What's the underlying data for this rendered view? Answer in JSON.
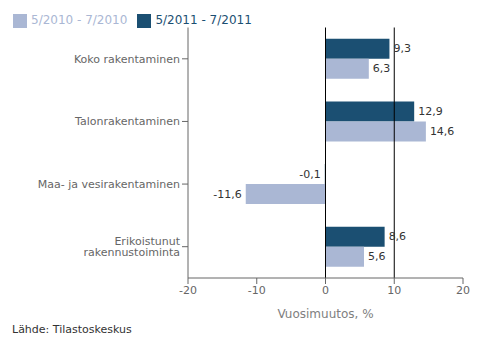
{
  "chart_data": {
    "type": "bar",
    "orientation": "horizontal",
    "categories": [
      "Erikoistunut rakennustoiminta",
      "Maa- ja vesirakentaminen",
      "Talonrakentaminen",
      "Koko rakentaminen"
    ],
    "series": [
      {
        "name": "5/2011 - 7/2011",
        "color": "#1b4f72",
        "values": [
          8.6,
          -0.1,
          12.9,
          9.3
        ],
        "value_labels": [
          "8,6",
          "-0,1",
          "12,9",
          "9,3"
        ]
      },
      {
        "name": "5/2010 - 7/2010",
        "color": "#aab7d4",
        "values": [
          5.6,
          -11.6,
          14.6,
          6.3
        ],
        "value_labels": [
          "5,6",
          "-11,6",
          "14,6",
          "6,3"
        ]
      }
    ],
    "xlabel": "Vuosimuutos, %",
    "xlim": [
      -20,
      20
    ],
    "xticks": [
      -20,
      -10,
      0,
      10,
      20
    ],
    "vlines": [
      0,
      10
    ],
    "data_labels": true,
    "legend": "upper left",
    "grid": false,
    "annotations": [
      "Lähde: Tilastoskeskus"
    ]
  }
}
